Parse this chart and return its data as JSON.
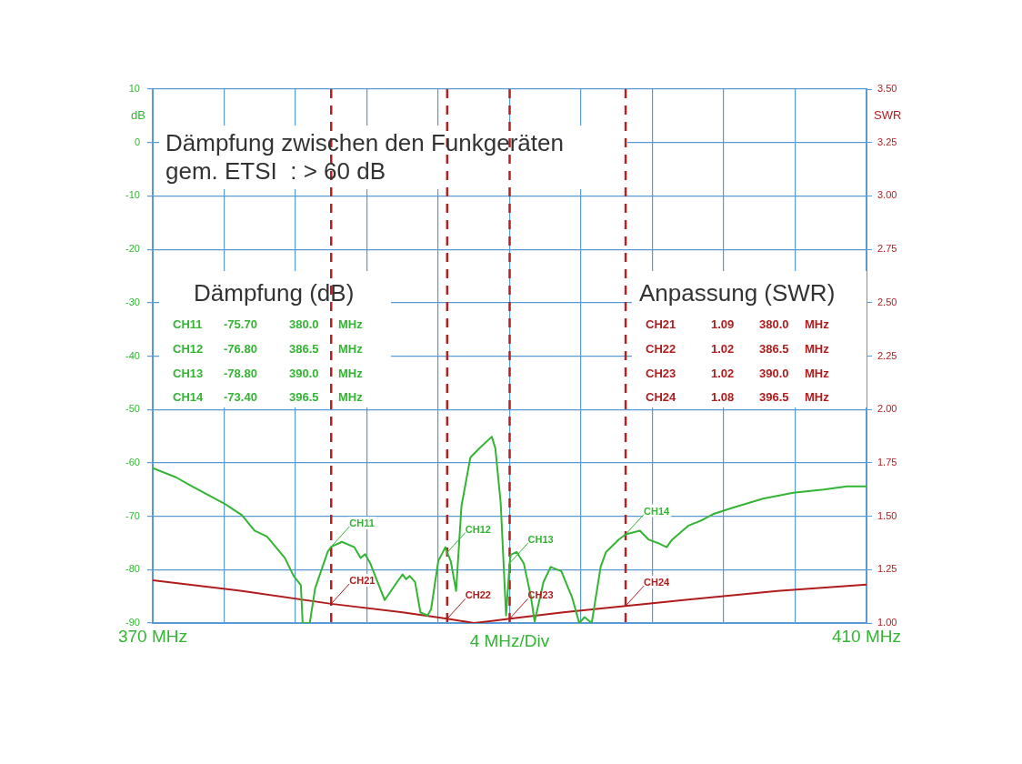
{
  "chart_data": {
    "type": "line",
    "xlabel": "4 MHz/Div",
    "ylabel": "dB",
    "y2label": "SWR",
    "xlim": [
      370,
      410
    ],
    "xticks": [
      {
        "value": 370,
        "label": "370 MHz"
      },
      {
        "value": 374,
        "label": null
      },
      {
        "value": 378,
        "label": null
      },
      {
        "value": 382,
        "label": null
      },
      {
        "value": 386,
        "label": null
      },
      {
        "value": 390,
        "label": null
      },
      {
        "value": 394,
        "label": null
      },
      {
        "value": 398,
        "label": null
      },
      {
        "value": 402,
        "label": null
      },
      {
        "value": 406,
        "label": null
      },
      {
        "value": 410,
        "label": "410 MHz"
      }
    ],
    "ylim": [
      -90,
      10
    ],
    "yticks": [
      10,
      0,
      -10,
      -20,
      -30,
      -40,
      -50,
      -60,
      -70,
      -80,
      -90
    ],
    "y2lim": [
      1,
      3.5
    ],
    "y2ticks": [
      {
        "value": 1,
        "label": "1.00"
      },
      {
        "value": 1.25,
        "label": "1.25"
      },
      {
        "value": 1.5,
        "label": "1.50"
      },
      {
        "value": 1.75,
        "label": "1.75"
      },
      {
        "value": 2,
        "label": "2.00"
      },
      {
        "value": 2.25,
        "label": "2.25"
      },
      {
        "value": 2.5,
        "label": "2.50"
      },
      {
        "value": 2.75,
        "label": "2.75"
      },
      {
        "value": 3,
        "label": "3.00"
      },
      {
        "value": 3.25,
        "label": "3.25"
      },
      {
        "value": 3.5,
        "label": "3.50"
      }
    ],
    "grid": true,
    "marker": "none",
    "line_style": "solid",
    "series": [
      {
        "type": "line",
        "color": "#33b533",
        "x": [
          370.0,
          371.3,
          372.1,
          374.0,
          375.0,
          375.7,
          376.4,
          377.4,
          377.9,
          378.3,
          378.4,
          378.8,
          379.1,
          379.8,
          380.0,
          380.6,
          381.3,
          381.65,
          381.9,
          382.2,
          383.0,
          383.7,
          384.0,
          384.2,
          384.4,
          384.7,
          385.0,
          385.4,
          385.6,
          386.0,
          386.4,
          386.5,
          386.7,
          387.0,
          387.3,
          387.8,
          388.3,
          389.0,
          389.2,
          389.5,
          389.8,
          390.0,
          390.06,
          390.4,
          390.8,
          391.2,
          391.4,
          391.9,
          392.3,
          392.9,
          393.5,
          393.9,
          394.2,
          394.6,
          395.1,
          395.4,
          396.1,
          396.5,
          397.3,
          397.8,
          398.3,
          398.8,
          399.1,
          400.0,
          400.8,
          401.4,
          402.5,
          404.2,
          405.9,
          407.6,
          408.9,
          410.0
        ],
        "values": [
          -61.0,
          -62.7,
          -64.2,
          -67.6,
          -69.8,
          -72.7,
          -73.8,
          -77.8,
          -81.2,
          -82.9,
          -90,
          -90,
          -83.5,
          -76.7,
          -75.7,
          -74.8,
          -75.8,
          -77.8,
          -77.1,
          -78.9,
          -85.7,
          -82.3,
          -80.9,
          -81.8,
          -81.2,
          -82.3,
          -88.0,
          -88.6,
          -87.4,
          -78.4,
          -75.8,
          -76.8,
          -78.4,
          -84.0,
          -68.1,
          -59.0,
          -57.3,
          -55.1,
          -57.3,
          -67.6,
          -88.6,
          -78.8,
          -77.2,
          -76.7,
          -78.9,
          -85.2,
          -89.7,
          -82.3,
          -79.5,
          -80.3,
          -85.2,
          -90,
          -88.9,
          -90,
          -79.5,
          -76.7,
          -74.4,
          -73.4,
          -72.7,
          -74.4,
          -75.0,
          -75.8,
          -74.4,
          -71.8,
          -70.7,
          -69.6,
          -68.4,
          -66.7,
          -65.6,
          -65.0,
          -64.4,
          -64.4
        ]
      },
      {
        "type": "line",
        "axis": "y2",
        "color": "#b01c1c",
        "x": [
          370,
          375,
          380,
          384,
          386.5,
          388,
          389,
          390,
          393,
          396.5,
          400,
          405,
          410
        ],
        "values": [
          1.2,
          1.15,
          1.09,
          1.05,
          1.02,
          1.0,
          1.01,
          1.02,
          1.05,
          1.08,
          1.11,
          1.15,
          1.18
        ]
      }
    ],
    "ref_lines": [
      {
        "axis": "x",
        "value": 380,
        "color": "#b22222",
        "line_style": "dashed"
      },
      {
        "axis": "x",
        "value": 386.5,
        "color": "#b22222",
        "line_style": "dashed"
      },
      {
        "axis": "x",
        "value": 390,
        "color": "#b22222",
        "line_style": "dashed"
      },
      {
        "axis": "x",
        "value": 396.5,
        "color": "#b22222",
        "line_style": "dashed"
      }
    ],
    "annotations": [
      "Dämpfung zwischen den Funkgeräten\ngem. ETSI  : > 60 dB",
      "Dämpfung (dB)",
      "CH11 -75.70 380.0 MHz",
      "CH12 -76.80 386.5 MHz",
      "CH13 -78.80 390.0 MHz",
      "CH14 -73.40 396.5 MHz",
      "Anpassung (SWR)",
      "CH21 1.09 380.0 MHz",
      "CH22 1.02 386.5 MHz",
      "CH23 1.02 390.0 MHz",
      "CH24 1.08 396.5 MHz",
      {
        "text": "CH11",
        "x": 380,
        "y": -75.7
      },
      {
        "text": "CH12",
        "x": 386.5,
        "y": -76.8
      },
      {
        "text": "CH13",
        "x": 390,
        "y": -78.8
      },
      {
        "text": "CH14",
        "x": 396.5,
        "y": -73.4
      },
      {
        "text": "CH21",
        "x": 380,
        "y": -86.4
      },
      {
        "text": "CH22",
        "x": 386.5,
        "y": -89.2
      },
      {
        "text": "CH23",
        "x": 390,
        "y": -89.2
      },
      {
        "text": "CH24",
        "x": 396.5,
        "y": -86.8
      }
    ]
  }
}
